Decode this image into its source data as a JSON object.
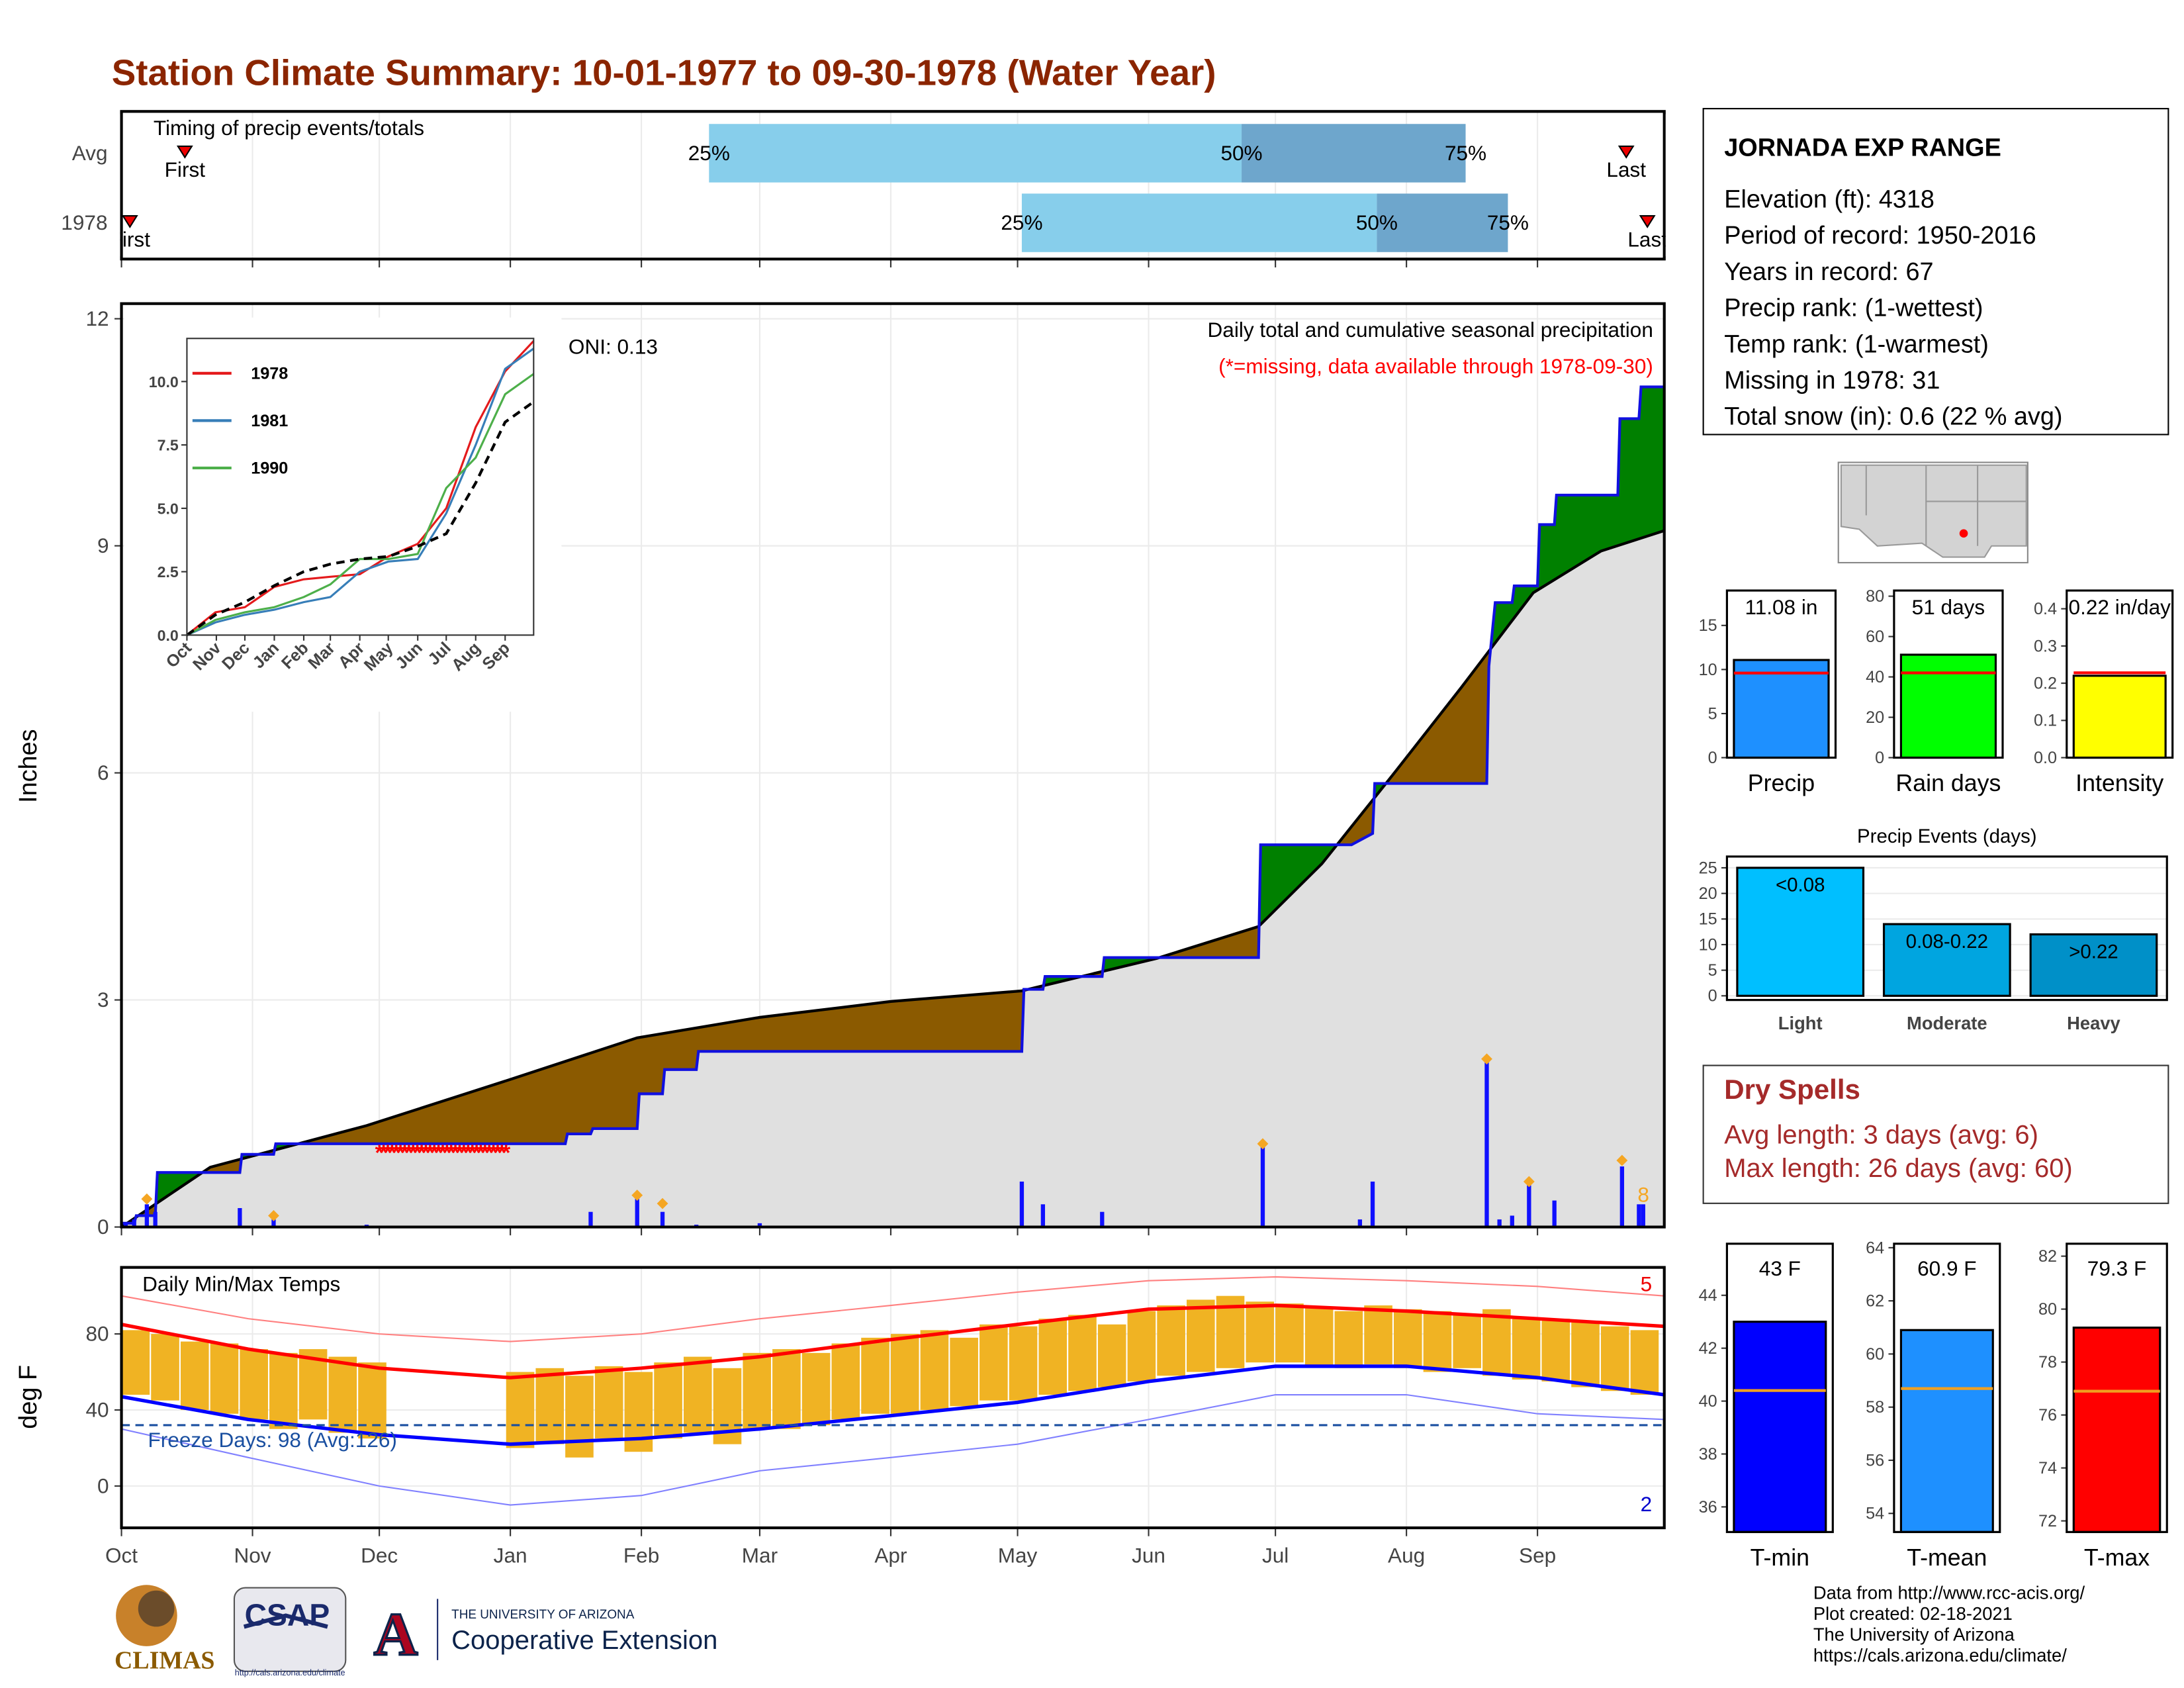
{
  "title": "Station Climate Summary: 10-01-1977 to 09-30-1978 (Water Year)",
  "months": {
    "xlim": [
      0,
      365
    ],
    "xticks": [
      {
        "value": 0,
        "label": "Oct"
      },
      {
        "value": 31,
        "label": "Nov"
      },
      {
        "value": 61,
        "label": "Dec"
      },
      {
        "value": 92,
        "label": "Jan"
      },
      {
        "value": 123,
        "label": "Feb"
      },
      {
        "value": 151,
        "label": "Mar"
      },
      {
        "value": 182,
        "label": "Apr"
      },
      {
        "value": 212,
        "label": "May"
      },
      {
        "value": 243,
        "label": "Jun"
      },
      {
        "value": 273,
        "label": "Jul"
      },
      {
        "value": 304,
        "label": "Aug"
      },
      {
        "value": 335,
        "label": "Sep"
      }
    ]
  },
  "timing": {
    "label": "Timing of precip events/totals",
    "first_label": "First",
    "last_label": "Last",
    "q_labels": [
      "25%",
      "50%",
      "75%"
    ],
    "rows": [
      {
        "name": "Avg",
        "first": 15,
        "q25": 139,
        "q50": 265,
        "q75": 318,
        "last": 356
      },
      {
        "name": "1978",
        "first": 2,
        "q25": 213,
        "q50": 297,
        "q75": 328,
        "last": 361
      }
    ]
  },
  "precip": {
    "type": "area",
    "ylabel": "Inches",
    "ylim": [
      0,
      12.2
    ],
    "yticks": [
      0,
      3,
      6,
      9,
      12
    ],
    "oni": "ONI: 0.13",
    "caption": "Daily total and cumulative seasonal precipitation",
    "note": "(*=missing, data available through 1978-09-30)",
    "cumulative": {
      "name": "1978",
      "x": [
        0,
        3,
        3.5,
        8,
        8.5,
        28,
        28.5,
        36,
        36.5,
        105,
        105.5,
        111,
        111.5,
        122,
        122.5,
        128,
        128.5,
        136,
        136.5,
        213,
        213.5,
        218,
        218.5,
        232,
        232.5,
        269,
        269.5,
        291,
        296,
        296.5,
        323,
        323.5,
        325,
        329,
        329.5,
        335,
        335.5,
        339,
        339.5,
        354,
        354.5,
        359,
        359.5,
        365
      ],
      "values": [
        0.05,
        0.05,
        0.15,
        0.15,
        0.72,
        0.72,
        0.96,
        0.96,
        1.1,
        1.1,
        1.23,
        1.23,
        1.3,
        1.3,
        1.76,
        1.76,
        2.08,
        2.08,
        2.32,
        2.32,
        3.14,
        3.14,
        3.31,
        3.31,
        3.56,
        3.56,
        5.05,
        5.05,
        5.2,
        5.86,
        5.86,
        7.41,
        8.25,
        8.25,
        8.47,
        8.47,
        9.28,
        9.28,
        9.67,
        9.67,
        10.68,
        10.68,
        11.1,
        11.1
      ]
    },
    "average": {
      "x": [
        0,
        21,
        58,
        92,
        122,
        151,
        182,
        213,
        245,
        269,
        284,
        301,
        317,
        334,
        350,
        365
      ],
      "values": [
        0,
        0.79,
        1.34,
        1.95,
        2.5,
        2.77,
        2.98,
        3.12,
        3.55,
        3.97,
        4.8,
        5.99,
        7.13,
        8.38,
        8.93,
        9.2
      ]
    },
    "daily": {
      "x": [
        1,
        3,
        6,
        8,
        28,
        36,
        58,
        111,
        122,
        128,
        136,
        151,
        213,
        218,
        232,
        270,
        293,
        296,
        323,
        326,
        329,
        333,
        339,
        355,
        359,
        360
      ],
      "values": [
        0.05,
        0.1,
        0.3,
        0.2,
        0.25,
        0.1,
        0.03,
        0.2,
        0.45,
        0.2,
        0.03,
        0.05,
        0.6,
        0.3,
        0.2,
        1.1,
        0.1,
        0.6,
        2.2,
        0.1,
        0.15,
        0.55,
        0.35,
        0.8,
        0.3,
        0.3
      ]
    },
    "records": {
      "x": [
        6,
        36,
        122,
        128,
        270,
        323,
        333,
        355
      ],
      "values": [
        0.37,
        0.15,
        0.42,
        0.31,
        1.1,
        2.22,
        0.6,
        0.88
      ]
    },
    "record_count": 8,
    "missing": {
      "start": 61,
      "end": 91
    }
  },
  "inset": {
    "type": "line",
    "ylim": [
      0,
      11.7
    ],
    "yticks": [
      {
        "value": 0,
        "label": "0.0"
      },
      2.5,
      {
        "value": 5,
        "label": "5.0"
      },
      7.5,
      {
        "value": 10,
        "label": "10.0"
      }
    ],
    "x": [
      0,
      30,
      61,
      92,
      123,
      151,
      182,
      212,
      243,
      273,
      304,
      335,
      365
    ],
    "average": [
      0,
      0.8,
      1.3,
      1.95,
      2.5,
      2.8,
      3.0,
      3.1,
      3.5,
      4.0,
      6.0,
      8.4,
      9.2
    ],
    "series": [
      {
        "name": "1978",
        "color": "#e41a1c",
        "values": [
          0,
          0.9,
          1.1,
          1.9,
          2.2,
          2.3,
          2.4,
          3.1,
          3.6,
          5.0,
          8.2,
          10.4,
          11.6
        ]
      },
      {
        "name": "1981",
        "color": "#377eb8",
        "values": [
          0,
          0.5,
          0.8,
          1.0,
          1.3,
          1.5,
          2.5,
          2.9,
          3.0,
          4.8,
          7.5,
          10.5,
          11.3
        ]
      },
      {
        "name": "1990",
        "color": "#4daf4a",
        "values": [
          0,
          0.6,
          0.9,
          1.1,
          1.5,
          2.0,
          3.0,
          3.0,
          3.2,
          5.8,
          7.0,
          9.5,
          10.3
        ]
      }
    ]
  },
  "temps": {
    "type": "bar",
    "title": "Daily Min/Max Temps",
    "ylabel": "deg F",
    "ylim": [
      -22,
      115
    ],
    "yticks": [
      0,
      40,
      80
    ],
    "freeze": 32,
    "freeze_label": "Freeze Days: 98 (Avg:126)",
    "record_high_count": 5,
    "record_low_count": 2,
    "x": [
      0,
      7,
      14,
      21,
      28,
      35,
      42,
      49,
      56,
      63,
      70,
      77,
      84,
      91,
      98,
      105,
      112,
      119,
      126,
      133,
      140,
      147,
      154,
      161,
      168,
      175,
      182,
      189,
      196,
      203,
      210,
      217,
      224,
      231,
      238,
      245,
      252,
      259,
      266,
      273,
      280,
      287,
      294,
      301,
      308,
      315,
      322,
      329,
      336,
      343,
      350,
      357
    ],
    "max": [
      82,
      80,
      76,
      75,
      72,
      70,
      72,
      68,
      65,
      null,
      null,
      null,
      null,
      60,
      62,
      58,
      63,
      60,
      65,
      68,
      62,
      70,
      72,
      70,
      75,
      78,
      80,
      82,
      78,
      85,
      84,
      88,
      90,
      85,
      92,
      95,
      98,
      100,
      97,
      96,
      94,
      92,
      95,
      93,
      92,
      90,
      93,
      88,
      88,
      86,
      84,
      82
    ],
    "min": [
      48,
      45,
      40,
      38,
      35,
      30,
      35,
      28,
      25,
      null,
      null,
      null,
      null,
      20,
      22,
      15,
      25,
      18,
      25,
      28,
      22,
      30,
      30,
      32,
      35,
      38,
      38,
      40,
      42,
      45,
      45,
      48,
      50,
      52,
      55,
      58,
      60,
      62,
      65,
      65,
      63,
      62,
      64,
      62,
      60,
      62,
      58,
      56,
      55,
      52,
      50,
      48
    ],
    "normals_x": [
      0,
      30,
      61,
      92,
      123,
      151,
      182,
      212,
      243,
      273,
      304,
      335,
      365
    ],
    "normal_max": [
      85,
      72,
      62,
      57,
      62,
      68,
      77,
      85,
      93,
      95,
      92,
      88,
      84
    ],
    "normal_min": [
      47,
      35,
      27,
      22,
      25,
      30,
      37,
      44,
      55,
      63,
      63,
      57,
      48
    ],
    "record_max": [
      100,
      88,
      80,
      76,
      80,
      88,
      95,
      102,
      108,
      110,
      108,
      105,
      100
    ],
    "record_min": [
      30,
      15,
      0,
      -10,
      -5,
      8,
      15,
      22,
      35,
      48,
      48,
      38,
      35
    ]
  },
  "station": {
    "name": "JORNADA EXP RANGE",
    "lines": [
      "Elevation (ft): 4318",
      "Period of record: 1950-2016",
      "Years in record: 67",
      "Precip rank:  (1-wettest)",
      "Temp rank:  (1-warmest)",
      "Missing in 1978: 31",
      "Total snow (in): 0.6 (22 % avg)"
    ]
  },
  "summary_bars": [
    {
      "name": "Precip",
      "value": 11.08,
      "value_label": "11.08 in",
      "normal": 9.6,
      "ylim": [
        0,
        18.96
      ],
      "yticks": [
        0,
        5,
        10,
        15
      ],
      "color": "#1e90ff",
      "normal_color": "#ff0000"
    },
    {
      "name": "Rain days",
      "value": 51,
      "value_label": "51 days",
      "normal": 42,
      "ylim": [
        0,
        82.8
      ],
      "yticks": [
        0,
        20,
        40,
        60,
        80
      ],
      "color": "#00ff00",
      "normal_color": "#ff0000"
    },
    {
      "name": "Intensity",
      "value": 0.22,
      "value_label": "0.22 in/day",
      "normal": 0.228,
      "ylim": [
        0,
        0.449
      ],
      "yticks": [
        {
          "value": 0,
          "label": "0.0"
        },
        0.1,
        0.2,
        0.3,
        0.4
      ],
      "color": "#ffff00",
      "normal_color": "#ff0000"
    }
  ],
  "events": {
    "type": "bar",
    "title": "Precip Events (days)",
    "categories": [
      "Light",
      "Moderate",
      "Heavy"
    ],
    "values": [
      25,
      14,
      12
    ],
    "value_labels": [
      "<0.08",
      "0.08-0.22",
      ">0.22"
    ],
    "ylim": [
      0,
      27.2
    ],
    "yticks": [
      0,
      5,
      10,
      15,
      20,
      25
    ],
    "colors": [
      "#00bfff",
      "#00a5e0",
      "#0090c8"
    ]
  },
  "dry_spells": {
    "title": "Dry Spells",
    "lines": [
      "Avg length: 3 days (avg: 6)",
      "Max length: 26 days (avg: 60)"
    ]
  },
  "temp_bars": [
    {
      "name": "T-min",
      "value": 43,
      "value_label": "43 F",
      "normal": 40.4,
      "ylim": [
        35.05,
        45.95
      ],
      "yticks": [
        36,
        38,
        40,
        42,
        44
      ],
      "color": "#0000ff",
      "normal_color": "#f0a020"
    },
    {
      "name": "T-mean",
      "value": 60.9,
      "value_label": "60.9 F",
      "normal": 58.7,
      "ylim": [
        53.3,
        64.15
      ],
      "yticks": [
        54,
        56,
        58,
        60,
        62,
        64
      ],
      "color": "#1e90ff",
      "normal_color": "#f0a020"
    },
    {
      "name": "T-max",
      "value": 79.3,
      "value_label": "79.3 F",
      "normal": 76.9,
      "ylim": [
        71.58,
        82.47
      ],
      "yticks": [
        72,
        74,
        76,
        78,
        80,
        82
      ],
      "color": "#ff0000",
      "normal_color": "#f0a020"
    }
  ],
  "footer": [
    "Data from http://www.rcc-acis.org/",
    "Plot created: 02-18-2021",
    "The University of Arizona",
    "https://cals.arizona.edu/climate/"
  ],
  "logos": {
    "climas": "CLIMAS",
    "csap": "CSAP",
    "csap_url": "http://cals.arizona.edu/climate",
    "ua": "A",
    "ua_small": "THE UNIVERSITY OF ARIZONA",
    "ua_big": "Cooperative Extension"
  }
}
